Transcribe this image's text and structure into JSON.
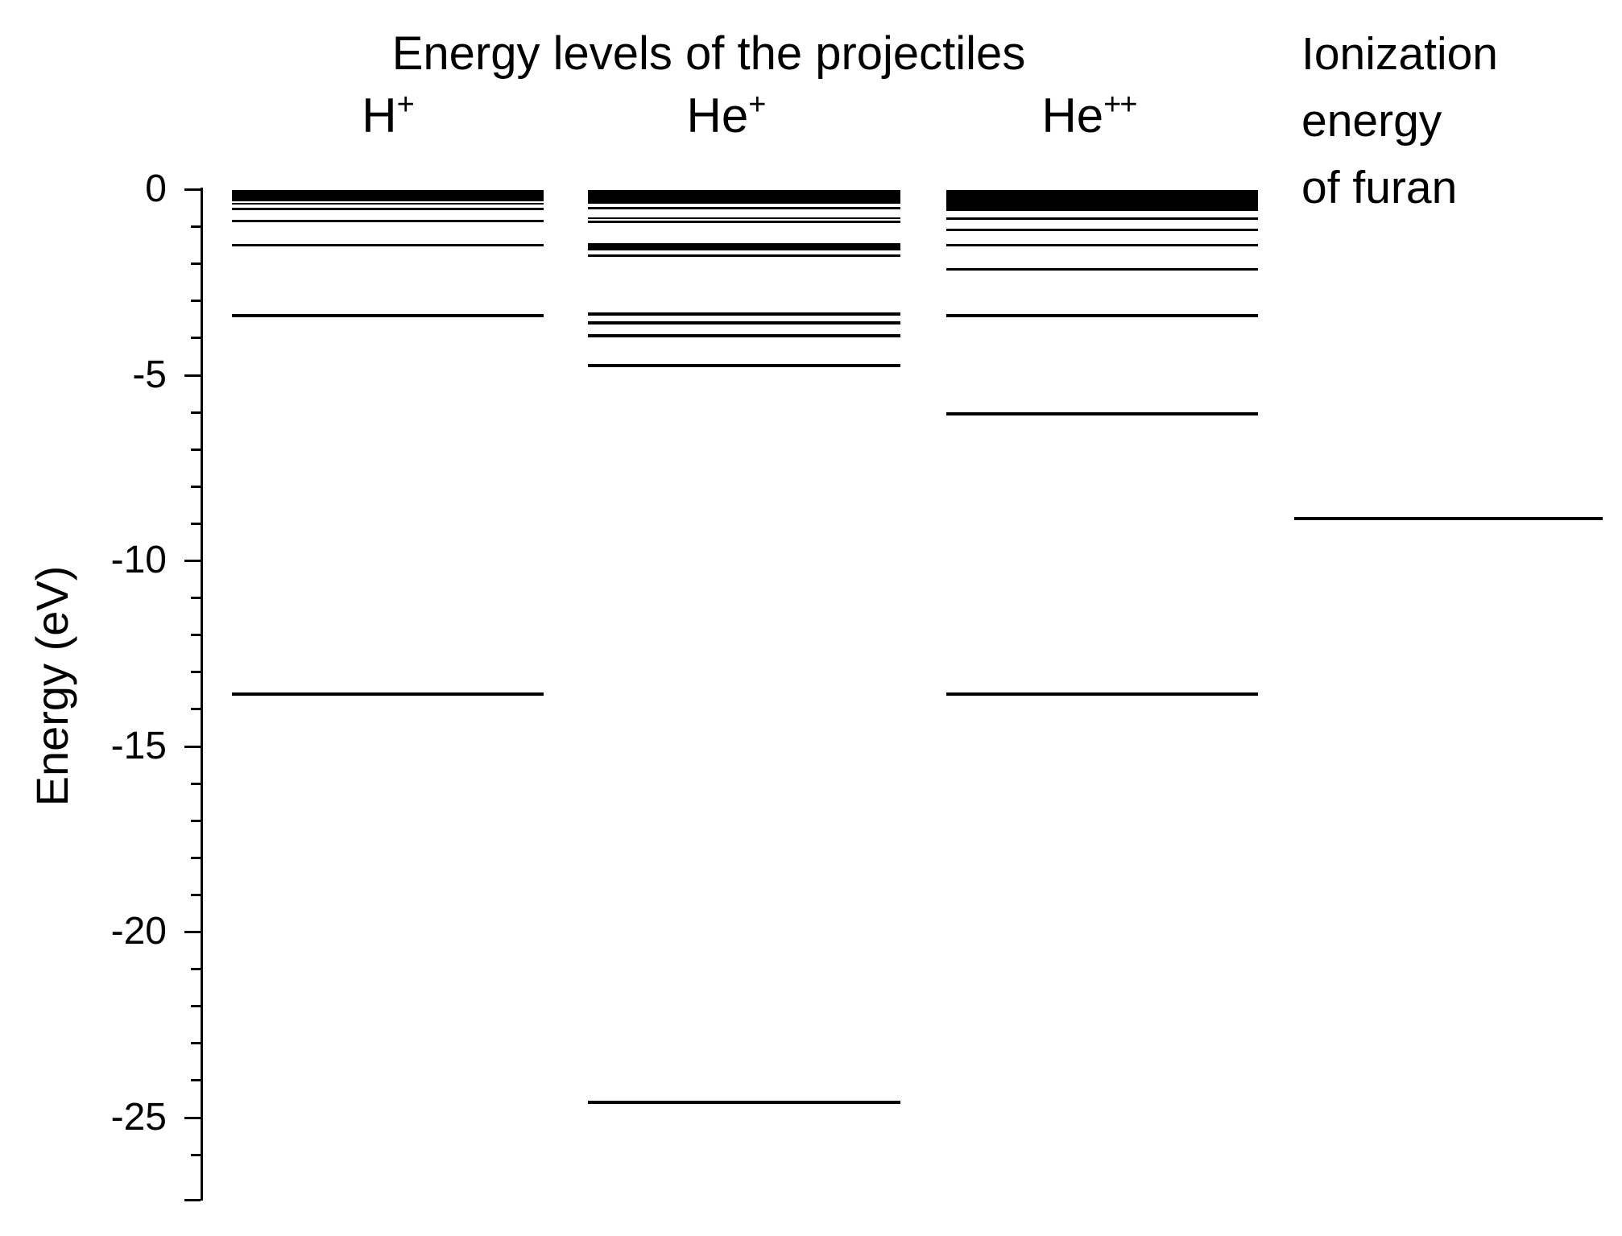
{
  "figure": {
    "title": "Energy levels of the projectiles",
    "background_color": "#ffffff",
    "ink_color": "#000000",
    "y_axis": {
      "label": "Energy (eV)",
      "tick_labels": [
        "0",
        "-5",
        "-10",
        "-15",
        "-20",
        "-25"
      ]
    }
  },
  "chart_data": {
    "type": "energy-level-diagram",
    "title": "Energy levels of the projectiles",
    "ylabel": "Energy (eV)",
    "ylim": [
      -27.2,
      0
    ],
    "yticks": [
      0,
      -5,
      -10,
      -15,
      -20,
      -25
    ],
    "minor_tick_step_eV": 1,
    "units": "eV",
    "columns": [
      {
        "name": "H+ projectile energy levels",
        "label": "H",
        "superscript": "+",
        "band": {
          "top": -0.02,
          "bottom": -0.32
        },
        "levels": [
          {
            "e": -0.4,
            "w": 2
          },
          {
            "e": -0.54,
            "w": 3
          },
          {
            "e": -0.85,
            "w": 3
          },
          {
            "e": -1.5,
            "w": 3
          },
          {
            "e": -3.4,
            "w": 4
          },
          {
            "e": -13.6,
            "w": 4
          }
        ]
      },
      {
        "name": "He+ projectile energy levels",
        "label": "He",
        "superscript": "+",
        "band": {
          "top": -0.02,
          "bottom": -0.4
        },
        "levels": [
          {
            "e": -0.52,
            "w": 3
          },
          {
            "e": -0.78,
            "w": 2
          },
          {
            "e": -0.88,
            "w": 3
          },
          {
            "e": -1.56,
            "w": 9
          },
          {
            "e": -1.8,
            "w": 3
          },
          {
            "e": -3.37,
            "w": 4
          },
          {
            "e": -3.6,
            "w": 4
          },
          {
            "e": -3.95,
            "w": 4
          },
          {
            "e": -4.75,
            "w": 4
          },
          {
            "e": -24.6,
            "w": 4
          }
        ]
      },
      {
        "name": "He++ projectile energy levels",
        "label": "He",
        "superscript": "++",
        "band": {
          "top": -0.02,
          "bottom": -0.59
        },
        "levels": [
          {
            "e": -0.8,
            "w": 3
          },
          {
            "e": -1.1,
            "w": 3
          },
          {
            "e": -1.5,
            "w": 3
          },
          {
            "e": -2.15,
            "w": 3
          },
          {
            "e": -3.4,
            "w": 4
          },
          {
            "e": -6.05,
            "w": 4
          },
          {
            "e": -13.6,
            "w": 4
          }
        ]
      },
      {
        "name": "Ionization energy of furan",
        "label_lines": [
          "Ionization",
          "energy",
          "of furan"
        ],
        "levels": [
          {
            "e": -8.88,
            "w": 4
          }
        ]
      }
    ]
  }
}
